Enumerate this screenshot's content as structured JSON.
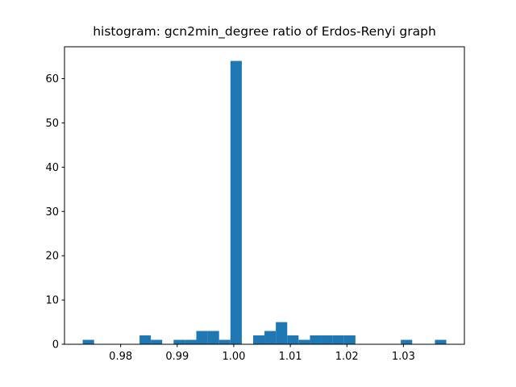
{
  "chart_data": {
    "type": "histogram",
    "title": "histogram: gcn2min_degree ratio of Erdos-Renyi graph",
    "bins": [
      0.97329,
      0.9753,
      0.97731,
      0.97932,
      0.98133,
      0.98334,
      0.98534,
      0.98735,
      0.98936,
      0.99137,
      0.99338,
      0.99539,
      0.9974,
      0.99941,
      1.00142,
      1.00343,
      1.00543,
      1.00744,
      1.00945,
      1.01146,
      1.01347,
      1.01548,
      1.01749,
      1.0195,
      1.02151,
      1.02352,
      1.02552,
      1.02753,
      1.02954,
      1.03155,
      1.03356,
      1.03557,
      1.03758
    ],
    "values": [
      1,
      0,
      0,
      0,
      0,
      2,
      1,
      0,
      1,
      1,
      3,
      3,
      1,
      64,
      0,
      2,
      3,
      5,
      2,
      1,
      2,
      2,
      2,
      2,
      0,
      0,
      0,
      0,
      1,
      0,
      0,
      1
    ],
    "color": "#1f77b4",
    "xlim": [
      0.97007,
      1.04078
    ],
    "xticks": [
      0.98,
      0.99,
      {
        "value": 1,
        "label": "1.00"
      },
      1.01,
      1.02,
      1.03
    ],
    "ylim": [
      0,
      67.2
    ],
    "yticks": [
      0,
      10,
      20,
      30,
      40,
      50,
      60
    ]
  }
}
